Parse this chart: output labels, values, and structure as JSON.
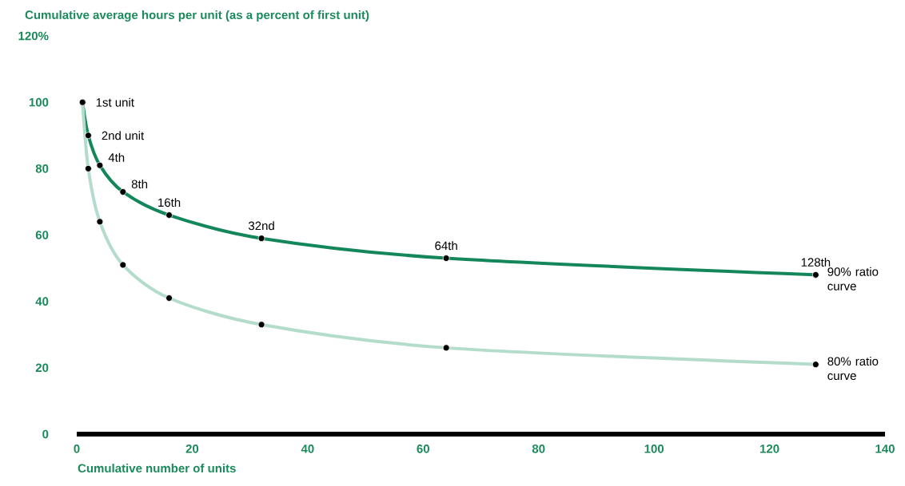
{
  "chart_data": {
    "type": "line",
    "ylabel": "Cumulative average hours per unit (as a percent of first unit)",
    "xlabel": "Cumulative number of units",
    "x": [
      1,
      2,
      4,
      8,
      16,
      32,
      64,
      128
    ],
    "series": [
      {
        "name": "90% ratio curve",
        "color": "#13875a",
        "values": [
          100,
          90,
          81,
          73,
          66,
          59,
          53,
          48
        ]
      },
      {
        "name": "80% ratio curve",
        "color": "#b3dccb",
        "values": [
          100,
          80,
          64,
          51,
          41,
          33,
          26,
          21
        ]
      }
    ],
    "marker": "circle",
    "grid": false,
    "xlim": [
      0,
      140
    ],
    "xticks": [
      0,
      20,
      40,
      60,
      80,
      100,
      120,
      140
    ],
    "ylim": [
      0,
      120
    ],
    "yticks": [
      0,
      20,
      40,
      60,
      80,
      100,
      {
        "value": 120,
        "label": "120%"
      }
    ],
    "annotations": [
      {
        "text": "1st unit",
        "x": 1,
        "y": 100
      },
      {
        "text": "2nd unit",
        "x": 2,
        "y": 90
      },
      {
        "text": "4th",
        "x": 4,
        "y": 81
      },
      {
        "text": "8th",
        "x": 8,
        "y": 73
      },
      {
        "text": "16th",
        "x": 16,
        "y": 66
      },
      {
        "text": "32nd",
        "x": 32,
        "y": 59
      },
      {
        "text": "64th",
        "x": 64,
        "y": 53
      },
      {
        "text": "128th",
        "x": 128,
        "y": 48
      }
    ]
  }
}
